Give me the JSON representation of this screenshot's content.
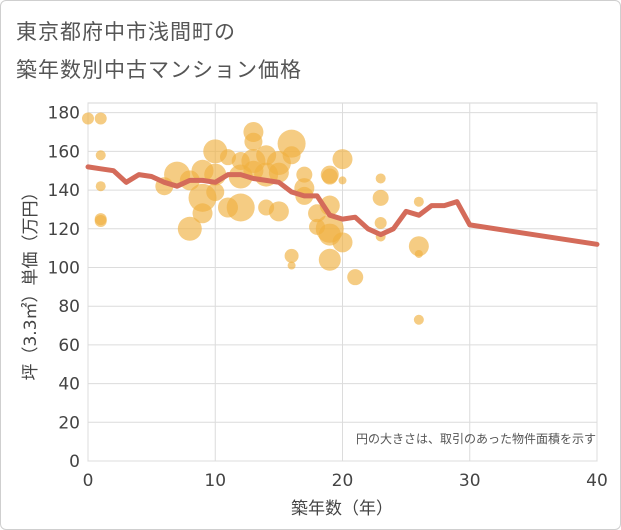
{
  "title_line1": "東京都府中市浅間町の",
  "title_line2": "築年数別中古マンション価格",
  "chart_data": {
    "type": "scatter",
    "xlabel": "築年数（年）",
    "ylabel": "坪（3.3㎡）単価（万円）",
    "xlim": [
      0,
      40
    ],
    "ylim": [
      0,
      185
    ],
    "xticks": [
      0,
      10,
      20,
      30,
      40
    ],
    "yticks": [
      0,
      20,
      40,
      60,
      80,
      100,
      120,
      140,
      160,
      180
    ],
    "grid": true,
    "note": "円の大きさは、取引のあった物件面積を示す",
    "bubble_color": "#f0b040",
    "line_color": "#d46b5a",
    "bubbles": [
      {
        "x": 0,
        "y": 177,
        "size": 6
      },
      {
        "x": 1,
        "y": 177,
        "size": 6
      },
      {
        "x": 1,
        "y": 158,
        "size": 5
      },
      {
        "x": 1,
        "y": 142,
        "size": 5
      },
      {
        "x": 1,
        "y": 125,
        "size": 6
      },
      {
        "x": 1,
        "y": 124,
        "size": 6
      },
      {
        "x": 6,
        "y": 142,
        "size": 9
      },
      {
        "x": 7,
        "y": 148,
        "size": 13
      },
      {
        "x": 8,
        "y": 120,
        "size": 12
      },
      {
        "x": 8,
        "y": 145,
        "size": 10
      },
      {
        "x": 9,
        "y": 150,
        "size": 11
      },
      {
        "x": 9,
        "y": 136,
        "size": 14
      },
      {
        "x": 9,
        "y": 128,
        "size": 10
      },
      {
        "x": 10,
        "y": 160,
        "size": 12
      },
      {
        "x": 10,
        "y": 148,
        "size": 11
      },
      {
        "x": 10,
        "y": 139,
        "size": 9
      },
      {
        "x": 11,
        "y": 157,
        "size": 8
      },
      {
        "x": 11,
        "y": 131,
        "size": 10
      },
      {
        "x": 12,
        "y": 155,
        "size": 9
      },
      {
        "x": 12,
        "y": 147,
        "size": 12
      },
      {
        "x": 12,
        "y": 131,
        "size": 14
      },
      {
        "x": 13,
        "y": 170,
        "size": 10
      },
      {
        "x": 13,
        "y": 165,
        "size": 9
      },
      {
        "x": 13,
        "y": 155,
        "size": 12
      },
      {
        "x": 13,
        "y": 150,
        "size": 10
      },
      {
        "x": 14,
        "y": 158,
        "size": 10
      },
      {
        "x": 14,
        "y": 148,
        "size": 12
      },
      {
        "x": 14,
        "y": 131,
        "size": 8
      },
      {
        "x": 15,
        "y": 154,
        "size": 12
      },
      {
        "x": 15,
        "y": 149,
        "size": 10
      },
      {
        "x": 15,
        "y": 129,
        "size": 10
      },
      {
        "x": 16,
        "y": 164,
        "size": 14
      },
      {
        "x": 16,
        "y": 158,
        "size": 9
      },
      {
        "x": 16,
        "y": 106,
        "size": 7
      },
      {
        "x": 16,
        "y": 101,
        "size": 4
      },
      {
        "x": 17,
        "y": 148,
        "size": 8
      },
      {
        "x": 17,
        "y": 141,
        "size": 10
      },
      {
        "x": 17,
        "y": 137,
        "size": 9
      },
      {
        "x": 18,
        "y": 128,
        "size": 9
      },
      {
        "x": 18,
        "y": 121,
        "size": 8
      },
      {
        "x": 19,
        "y": 148,
        "size": 9
      },
      {
        "x": 19,
        "y": 147,
        "size": 8
      },
      {
        "x": 19,
        "y": 132,
        "size": 10
      },
      {
        "x": 19,
        "y": 120,
        "size": 14
      },
      {
        "x": 19,
        "y": 117,
        "size": 11
      },
      {
        "x": 19,
        "y": 104,
        "size": 11
      },
      {
        "x": 20,
        "y": 156,
        "size": 10
      },
      {
        "x": 20,
        "y": 145,
        "size": 4
      },
      {
        "x": 20,
        "y": 113,
        "size": 10
      },
      {
        "x": 21,
        "y": 95,
        "size": 8
      },
      {
        "x": 23,
        "y": 146,
        "size": 5
      },
      {
        "x": 23,
        "y": 136,
        "size": 8
      },
      {
        "x": 23,
        "y": 123,
        "size": 6
      },
      {
        "x": 23,
        "y": 116,
        "size": 5
      },
      {
        "x": 26,
        "y": 134,
        "size": 5
      },
      {
        "x": 26,
        "y": 111,
        "size": 10
      },
      {
        "x": 26,
        "y": 107,
        "size": 4
      },
      {
        "x": 26,
        "y": 73,
        "size": 5
      }
    ],
    "trend": {
      "x": [
        0,
        1,
        2,
        3,
        4,
        5,
        6,
        7,
        8,
        9,
        10,
        11,
        12,
        13,
        14,
        15,
        16,
        17,
        18,
        19,
        20,
        21,
        22,
        23,
        24,
        25,
        26,
        27,
        28,
        29,
        30,
        40
      ],
      "y": [
        152,
        151,
        150,
        144,
        148,
        147,
        144,
        142,
        145,
        145,
        144,
        148,
        148,
        146,
        145,
        144,
        139,
        137,
        137,
        127,
        125,
        126,
        120,
        117,
        120,
        129,
        127,
        132,
        132,
        134,
        122,
        112
      ]
    }
  }
}
